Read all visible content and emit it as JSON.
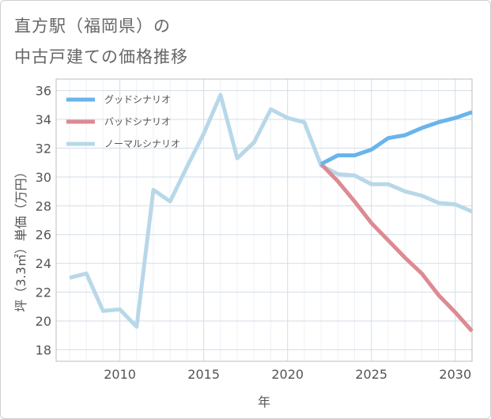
{
  "title": {
    "line1": "直方駅（福岡県）の",
    "line2": "中古戸建ての価格推移"
  },
  "chart_data": {
    "type": "line",
    "xlabel": "年",
    "ylabel": "坪（3.3㎡）単価（万円）",
    "xlim": [
      2006.2,
      2031
    ],
    "ylim": [
      17.2,
      36.8
    ],
    "x_ticks": [
      2010,
      2015,
      2020,
      2025,
      2030
    ],
    "y_ticks": [
      18,
      20,
      22,
      24,
      26,
      28,
      30,
      32,
      34,
      36
    ],
    "grid": true,
    "legend_position": "top-left",
    "series": [
      {
        "name": "グッドシナリオ",
        "color": "#6ab4ec",
        "x": [
          2022,
          2023,
          2024,
          2025,
          2026,
          2027,
          2028,
          2029,
          2030,
          2031
        ],
        "y": [
          30.9,
          31.5,
          31.5,
          31.9,
          32.7,
          32.9,
          33.4,
          33.8,
          34.1,
          34.5
        ]
      },
      {
        "name": "バッドシナリオ",
        "color": "#dd8a92",
        "x": [
          2022,
          2023,
          2024,
          2025,
          2026,
          2027,
          2028,
          2029,
          2030,
          2031
        ],
        "y": [
          30.9,
          29.7,
          28.3,
          26.8,
          25.6,
          24.4,
          23.3,
          21.8,
          20.6,
          19.3
        ]
      },
      {
        "name": "ノーマルシナリオ",
        "color": "#b8d8e8",
        "x": [
          2007,
          2008,
          2009,
          2010,
          2011,
          2012,
          2013,
          2014,
          2015,
          2016,
          2017,
          2018,
          2019,
          2020,
          2021,
          2022,
          2023,
          2024,
          2025,
          2026,
          2027,
          2028,
          2029,
          2030,
          2031
        ],
        "y": [
          23.0,
          23.3,
          20.7,
          20.8,
          19.6,
          29.1,
          28.3,
          30.7,
          33.0,
          35.7,
          31.3,
          32.4,
          34.7,
          34.1,
          33.8,
          30.8,
          30.2,
          30.1,
          29.5,
          29.5,
          29.0,
          28.7,
          28.2,
          28.1,
          27.6
        ]
      }
    ]
  }
}
